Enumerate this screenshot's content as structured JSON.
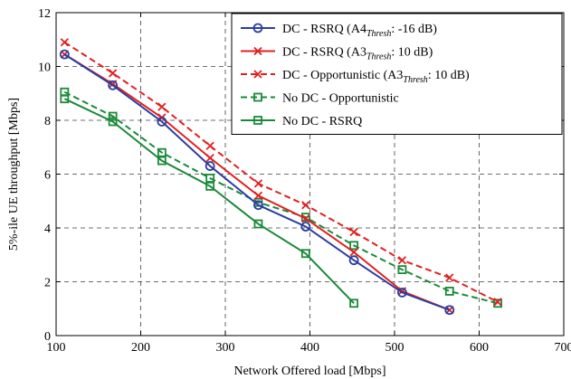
{
  "chart_data": {
    "type": "line",
    "xlabel": "Network Offered load [Mbps]",
    "ylabel": "5%-ile UE throughput [Mbps]",
    "xlim": [
      100,
      700
    ],
    "ylim": [
      0,
      12
    ],
    "xticks": [
      "100",
      "200",
      "300",
      "400",
      "500",
      "600",
      "700"
    ],
    "yticks": [
      "0",
      "2",
      "4",
      "6",
      "8",
      "10",
      "12"
    ],
    "grid": true,
    "legend_position": "top-right",
    "series": [
      {
        "name": "DC - RSRQ (A4",
        "name_sub": "Thresh",
        "name_tail": ": -16 dB)",
        "color": "#2c3ea0",
        "line_style": "solid",
        "marker": "circle",
        "x": [
          110,
          167,
          225,
          282,
          339,
          395,
          452,
          509,
          565
        ],
        "y": [
          10.45,
          9.3,
          7.95,
          6.3,
          4.85,
          4.05,
          2.8,
          1.6,
          0.95
        ]
      },
      {
        "name": "DC - RSRQ (A3",
        "name_sub": "Thresh",
        "name_tail": ": 10 dB)",
        "color": "#e02020",
        "line_style": "solid",
        "marker": "x",
        "x": [
          110,
          167,
          225,
          282,
          339,
          395,
          452,
          509,
          565
        ],
        "y": [
          10.45,
          9.35,
          8.1,
          6.6,
          5.2,
          4.35,
          3.1,
          1.65,
          0.95
        ]
      },
      {
        "name": "DC - Opportunistic (A3",
        "name_sub": "Thresh",
        "name_tail": ": 10 dB)",
        "color": "#e02020",
        "line_style": "dashed",
        "marker": "x",
        "x": [
          110,
          167,
          225,
          282,
          339,
          395,
          452,
          509,
          565,
          622
        ],
        "y": [
          10.9,
          9.75,
          8.5,
          7.05,
          5.65,
          4.85,
          3.85,
          2.8,
          2.15,
          1.25
        ]
      },
      {
        "name": "No DC - Opportunistic",
        "name_sub": "",
        "name_tail": "",
        "color": "#1a8a3a",
        "line_style": "dashed",
        "marker": "square",
        "x": [
          110,
          167,
          225,
          282,
          339,
          395,
          452,
          509,
          565,
          622
        ],
        "y": [
          9.05,
          8.15,
          6.8,
          5.85,
          4.95,
          4.4,
          3.35,
          2.45,
          1.65,
          1.2
        ]
      },
      {
        "name": "No DC - RSRQ",
        "name_sub": "",
        "name_tail": "",
        "color": "#1a8a3a",
        "line_style": "solid",
        "marker": "square",
        "x": [
          110,
          167,
          225,
          282,
          339,
          395,
          452
        ],
        "y": [
          8.8,
          7.95,
          6.5,
          5.55,
          4.15,
          3.05,
          1.2
        ]
      }
    ]
  }
}
